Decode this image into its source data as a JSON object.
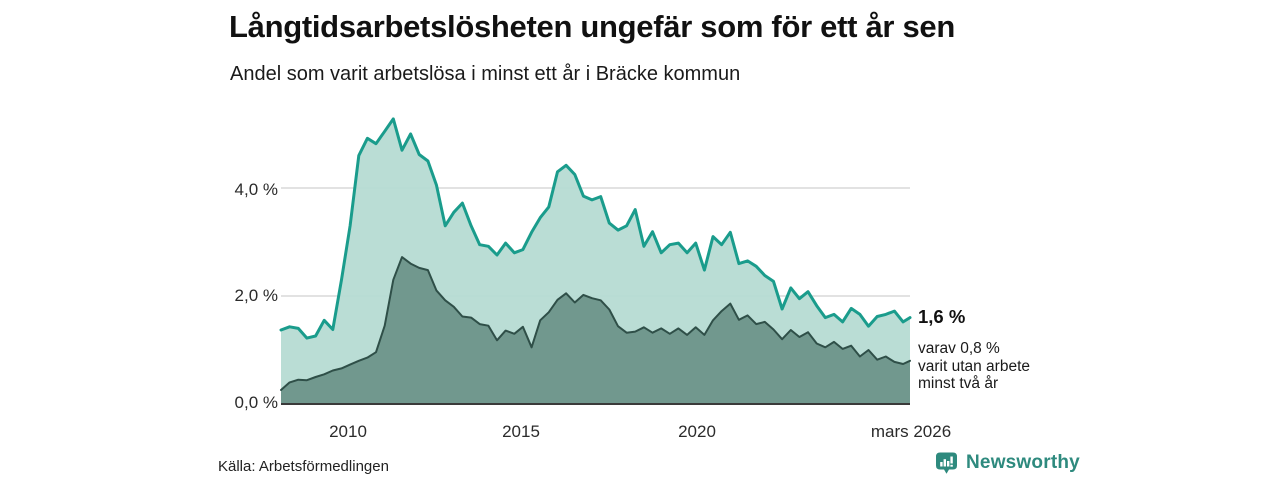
{
  "header": {
    "title": "Långtidsarbetslösheten ungefär som för ett år sen",
    "subtitle": "Andel som varit arbetslösa i minst ett år i Bräcke kommun"
  },
  "annotation": {
    "value": "1,6 %",
    "line1": "varav 0,8 %",
    "line2": "varit utan arbete",
    "line3": "minst två år"
  },
  "footer": {
    "source": "Källa: Arbetsförmedlingen",
    "logo_text": "Newsworthy",
    "logo_icon": "newsworthy-barchart-badge-icon"
  },
  "colors": {
    "line_total": "#1a9c8c",
    "fill_total": "#b5dad2",
    "line_two_years": "#2f4f48",
    "fill_two_years": "#6e968b",
    "gridline": "#d9d9d9",
    "baseline": "#3a3a3a",
    "logo_teal": "#2e8a7e",
    "text": "#1a1a1a"
  },
  "chart_data": {
    "type": "area",
    "title": "Långtidsarbetslösheten ungefär som för ett år sen",
    "subtitle": "Andel som varit arbetslösa i minst ett år i Bräcke kommun",
    "xlabel": "",
    "ylabel": "",
    "unit": "%",
    "ylim": [
      0,
      5.45
    ],
    "xlim": [
      2008.0,
      2026.2
    ],
    "grid": "horizontal",
    "legend_position": "annotated-at-line-end",
    "y_ticks": [
      {
        "label": "4,0 %",
        "value": 4.0
      },
      {
        "label": "2,0 %",
        "value": 2.0
      },
      {
        "label": "0,0 %",
        "value": 0.0
      }
    ],
    "x_ticks": [
      {
        "label": "2010",
        "value": 2010
      },
      {
        "label": "2015",
        "value": 2015
      },
      {
        "label": "2020",
        "value": 2020
      },
      {
        "label": "mars 2026",
        "value": 2026.2
      }
    ],
    "x": [
      2008.0,
      2008.25,
      2008.5,
      2008.75,
      2009.0,
      2009.25,
      2009.5,
      2009.75,
      2010.0,
      2010.25,
      2010.5,
      2010.75,
      2011.0,
      2011.25,
      2011.5,
      2011.75,
      2012.0,
      2012.25,
      2012.5,
      2012.75,
      2013.0,
      2013.25,
      2013.5,
      2013.75,
      2014.0,
      2014.25,
      2014.5,
      2014.75,
      2015.0,
      2015.25,
      2015.5,
      2015.75,
      2016.0,
      2016.25,
      2016.5,
      2016.75,
      2017.0,
      2017.25,
      2017.5,
      2017.75,
      2018.0,
      2018.25,
      2018.5,
      2018.75,
      2019.0,
      2019.25,
      2019.5,
      2019.75,
      2020.0,
      2020.25,
      2020.5,
      2020.75,
      2021.0,
      2021.25,
      2021.5,
      2021.75,
      2022.0,
      2022.25,
      2022.5,
      2022.75,
      2023.0,
      2023.25,
      2023.5,
      2023.75,
      2024.0,
      2024.25,
      2024.5,
      2024.75,
      2025.0,
      2025.25,
      2025.5,
      2025.75,
      2026.0,
      2026.2
    ],
    "series": [
      {
        "name": "Andel arbetslösa minst ett år",
        "end_label": "1,6 %",
        "values": [
          1.37,
          1.43,
          1.4,
          1.22,
          1.26,
          1.55,
          1.38,
          2.3,
          3.3,
          4.6,
          4.92,
          4.82,
          5.05,
          5.28,
          4.7,
          5.0,
          4.62,
          4.5,
          4.05,
          3.3,
          3.55,
          3.72,
          3.3,
          2.95,
          2.92,
          2.76,
          2.98,
          2.8,
          2.86,
          3.18,
          3.45,
          3.65,
          4.3,
          4.42,
          4.25,
          3.85,
          3.78,
          3.84,
          3.35,
          3.22,
          3.3,
          3.6,
          2.92,
          3.19,
          2.8,
          2.95,
          2.98,
          2.8,
          2.98,
          2.48,
          3.1,
          2.95,
          3.18,
          2.6,
          2.65,
          2.55,
          2.38,
          2.27,
          1.76,
          2.15,
          1.95,
          2.08,
          1.82,
          1.6,
          1.66,
          1.52,
          1.77,
          1.66,
          1.44,
          1.62,
          1.66,
          1.72,
          1.52,
          1.6
        ]
      },
      {
        "name": "varav varit utan arbete minst två år",
        "end_label": "0,8 %",
        "values": [
          0.26,
          0.4,
          0.45,
          0.44,
          0.5,
          0.55,
          0.62,
          0.66,
          0.73,
          0.8,
          0.86,
          0.96,
          1.45,
          2.3,
          2.72,
          2.6,
          2.52,
          2.48,
          2.1,
          1.92,
          1.8,
          1.62,
          1.6,
          1.48,
          1.45,
          1.18,
          1.36,
          1.3,
          1.43,
          1.05,
          1.55,
          1.7,
          1.93,
          2.05,
          1.88,
          2.02,
          1.96,
          1.92,
          1.75,
          1.44,
          1.32,
          1.34,
          1.42,
          1.32,
          1.4,
          1.3,
          1.4,
          1.28,
          1.42,
          1.28,
          1.55,
          1.72,
          1.86,
          1.56,
          1.64,
          1.48,
          1.52,
          1.38,
          1.2,
          1.37,
          1.24,
          1.33,
          1.12,
          1.05,
          1.15,
          1.02,
          1.08,
          0.88,
          1.0,
          0.82,
          0.88,
          0.78,
          0.74,
          0.8
        ]
      }
    ]
  }
}
